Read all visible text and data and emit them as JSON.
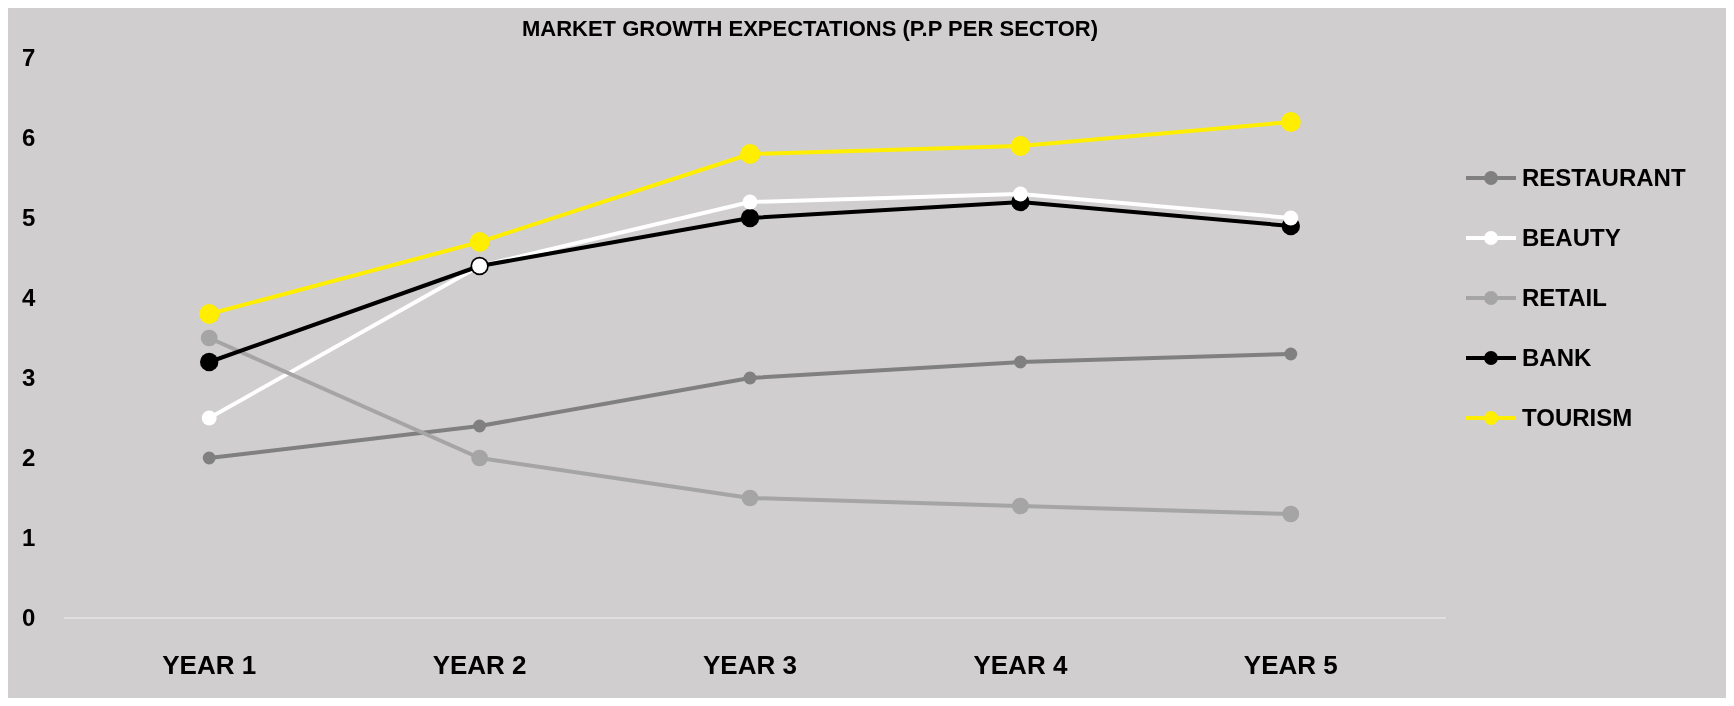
{
  "chart_data": {
    "type": "line",
    "title": "MARKET GROWTH EXPECTATIONS (P.P PER SECTOR)",
    "categories": [
      "YEAR 1",
      "YEAR 2",
      "YEAR 3",
      "YEAR 4",
      "YEAR 5"
    ],
    "series": [
      {
        "name": "RESTAURANT",
        "color": "#808080",
        "values": [
          2,
          2.4,
          3,
          3.2,
          3.3
        ]
      },
      {
        "name": "BEAUTY",
        "color": "#ffffff",
        "values": [
          2.5,
          4.4,
          5.2,
          5.3,
          5.0
        ]
      },
      {
        "name": "RETAIL",
        "color": "#a5a5a5",
        "values": [
          3.5,
          2,
          1.5,
          1.4,
          1.3
        ]
      },
      {
        "name": "BANK",
        "color": "#000000",
        "values": [
          3.2,
          4.4,
          5.0,
          5.2,
          4.9
        ]
      },
      {
        "name": "TOURISM",
        "color": "#ffee00",
        "values": [
          3.8,
          4.7,
          5.8,
          5.9,
          6.2
        ]
      }
    ],
    "ylim": [
      0,
      7
    ],
    "yticks": [
      0,
      1,
      2,
      3,
      4,
      5,
      6,
      7
    ],
    "legend": "right",
    "marker": "circle",
    "line_style": "solid"
  }
}
